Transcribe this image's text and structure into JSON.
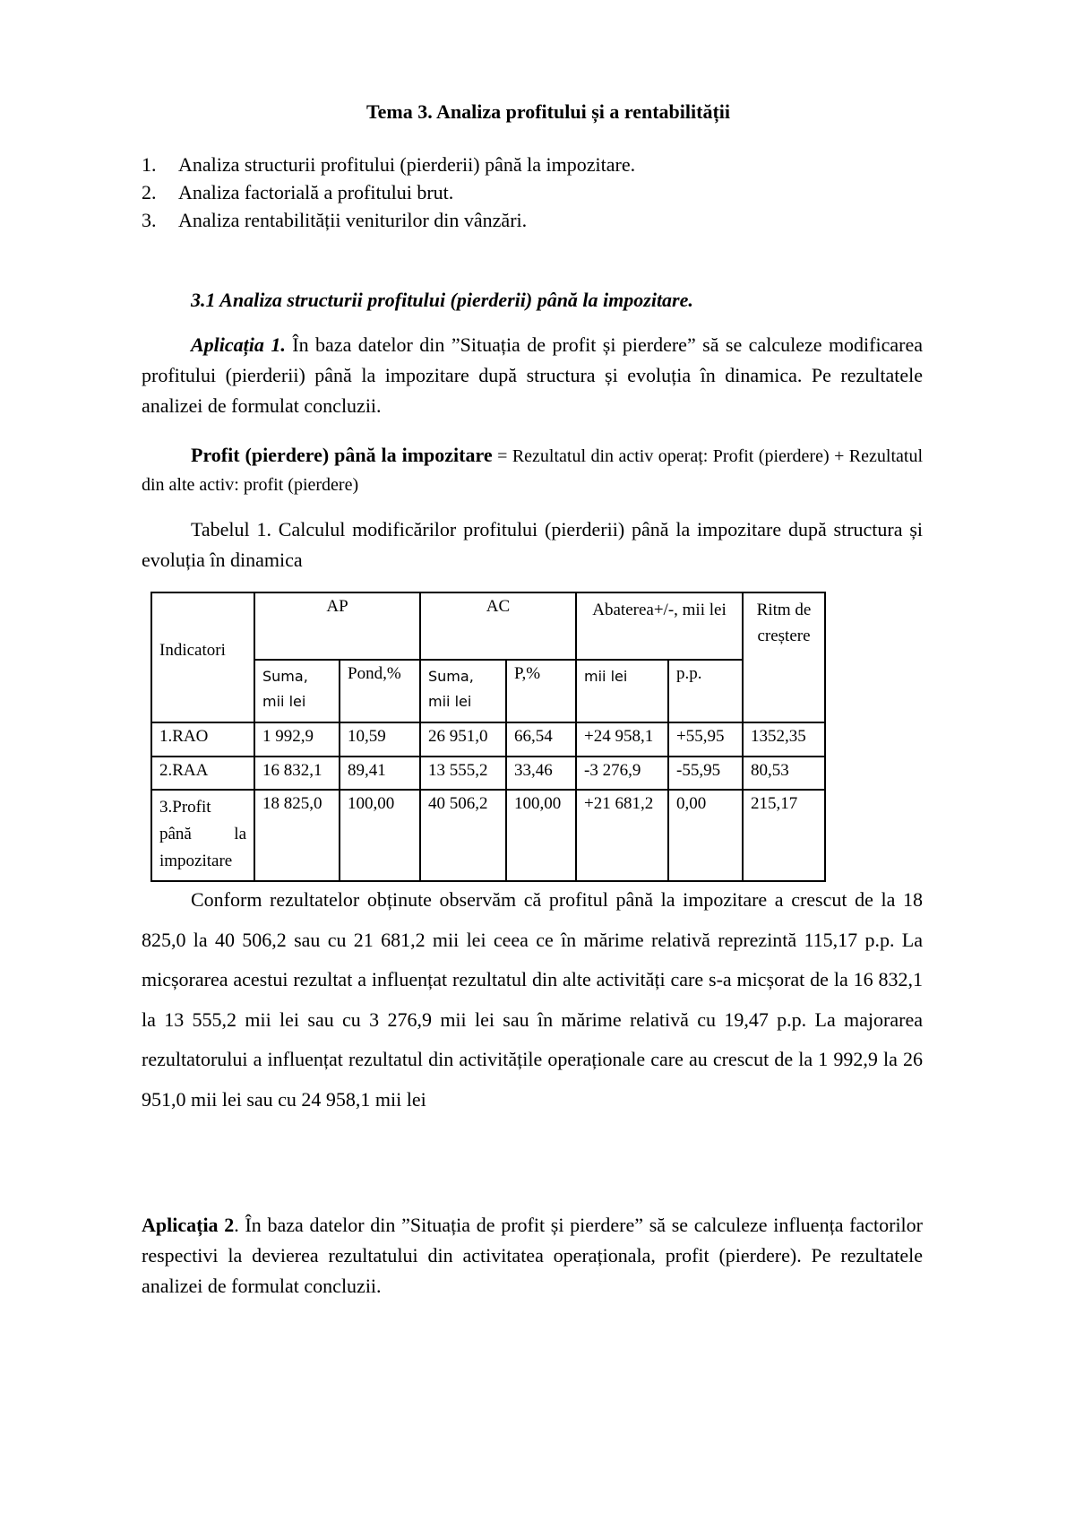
{
  "title": "Tema 3. Analiza profitului și a rentabilității",
  "toc": [
    {
      "n": "1.",
      "text": "Analiza structurii profitului (pierderii) până la impozitare."
    },
    {
      "n": "2.",
      "text": "Analiza factorială a profitului brut."
    },
    {
      "n": "3.",
      "text": "Analiza rentabilității veniturilor din vânzări."
    }
  ],
  "section_title": "3.1 Analiza structurii profitului (pierderii) până la impozitare.",
  "app1": {
    "label": "Aplicația 1.",
    "text": " În baza datelor din ”Situația de profit și pierdere” să se calculeze modificarea profitului (pierderii) până la impozitare după structura și evoluția în dinamica. Pe rezultatele analizei de formulat concluzii."
  },
  "formula": {
    "bold": "Profit (pierdere) până la impozitare",
    "rest": " = Rezultatul din activ operaț: Profit (pierdere) + Rezultatul din alte activ: profit (pierdere)"
  },
  "table_caption": "Tabelul 1. Calculul modificărilor profitului (pierderii) până la impozitare după structura și evoluția în dinamica",
  "table": {
    "headers": {
      "indicatori": "Indicatori",
      "ap": "AP",
      "ac": "AC",
      "abaterea": "Abaterea+/-, mii lei",
      "ritm": "Ritm de creștere",
      "sub": [
        "Suma, mii lei",
        "Pond,%",
        "Suma, mii lei",
        "P,%",
        "mii lei",
        "p.p."
      ]
    },
    "rows": [
      [
        "1.RAO",
        "1 992,9",
        "10,59",
        "26 951,0",
        "66,54",
        "+24 958,1",
        "+55,95",
        "1352,35"
      ],
      [
        "2.RAA",
        "16 832,1",
        "89,41",
        "13 555,2",
        "33,46",
        "-3 276,9",
        "-55,95",
        "80,53"
      ],
      [
        "3.Profit până la impozitare",
        "18 825,0",
        "100,00",
        "40 506,2",
        "100,00",
        "+21 681,2",
        "0,00",
        "215,17"
      ]
    ]
  },
  "conclusion": "Conform rezultatelor obținute observăm că profitul până la impozitare a crescut de la 18 825,0 la 40 506,2 sau cu 21 681,2 mii lei ceea ce în mărime relativă reprezintă 115,17 p.p. La micșorarea acestui rezultat a influențat rezultatul din alte activități care s-a micșorat de la 16 832,1 la 13 555,2 mii lei sau cu 3 276,9 mii lei sau în mărime relativă cu 19,47 p.p. La majorarea rezultatorului a influențat rezultatul din activitățile operaționale care au crescut de la 1 992,9 la 26 951,0 mii lei sau cu 24 958,1 mii lei",
  "app2": {
    "label": "Aplicația 2",
    "text": ". În baza datelor din ”Situația de profit și pierdere” să se calculeze influența factorilor respectivi la devierea rezultatului din activitatea operaționala, profit (pierdere). Pe rezultatele analizei de formulat concluzii."
  }
}
